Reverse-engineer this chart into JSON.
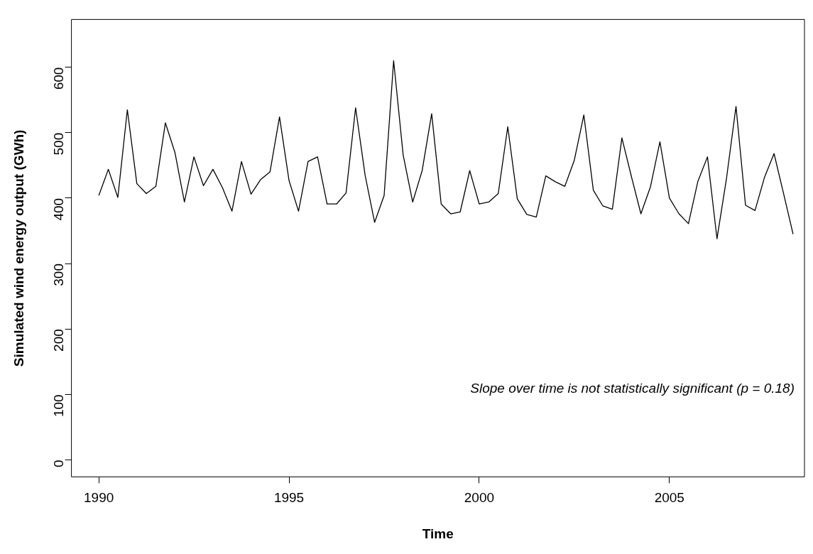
{
  "chart_data": {
    "type": "line",
    "xlabel": "Time",
    "ylabel": "Simulated wind energy output (GWh)",
    "x": [
      1990,
      1990.25,
      1990.5,
      1990.75,
      1991,
      1991.25,
      1991.5,
      1991.75,
      1992,
      1992.25,
      1992.5,
      1992.75,
      1993,
      1993.25,
      1993.5,
      1993.75,
      1994,
      1994.25,
      1994.5,
      1994.75,
      1995,
      1995.25,
      1995.5,
      1995.75,
      1996,
      1996.25,
      1996.5,
      1996.75,
      1997,
      1997.25,
      1997.5,
      1997.75,
      1998,
      1998.25,
      1998.5,
      1998.75,
      1999,
      1999.25,
      1999.5,
      1999.75,
      2000,
      2000.25,
      2000.5,
      2000.75,
      2001,
      2001.25,
      2001.5,
      2001.75,
      2002,
      2002.25,
      2002.5,
      2002.75,
      2003,
      2003.25,
      2003.5,
      2003.75,
      2004,
      2004.25,
      2004.5,
      2004.75,
      2005,
      2005.25,
      2005.5,
      2005.75,
      2006,
      2006.25,
      2006.5,
      2006.75,
      2007,
      2007.25,
      2007.5,
      2007.75,
      2008,
      2008.25
    ],
    "series": [
      {
        "color": "#000000",
        "values": [
          404,
          444,
          401,
          535,
          422,
          407,
          418,
          515,
          470,
          394,
          463,
          419,
          444,
          416,
          380,
          456,
          406,
          428,
          440,
          524,
          427,
          380,
          456,
          463,
          391,
          391,
          408,
          538,
          435,
          363,
          404,
          610,
          466,
          394,
          442,
          529,
          391,
          376,
          379,
          442,
          391,
          394,
          407,
          509,
          399,
          375,
          371,
          434,
          425,
          418,
          458,
          527,
          412,
          388,
          383,
          492,
          433,
          376,
          417,
          486,
          400,
          376,
          361,
          426,
          463,
          338,
          430,
          540,
          389,
          381,
          432,
          468,
          407,
          345
        ]
      }
    ],
    "xlim": [
      1989.28,
      2008.55
    ],
    "ylim": [
      -26,
      673
    ],
    "xticks": [
      1990,
      1995,
      2000,
      2005
    ],
    "yticks": [
      0,
      100,
      200,
      300,
      400,
      500,
      600
    ],
    "marker": "none",
    "annotations": [
      "Slope over time is not statistically significant (p = 0.18)"
    ]
  }
}
